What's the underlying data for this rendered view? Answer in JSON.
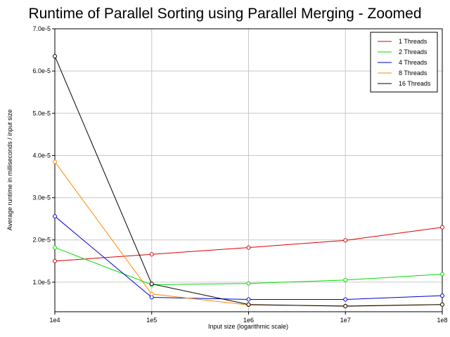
{
  "chart_data": {
    "type": "line",
    "title": "Runtime of Parallel Sorting using Parallel Merging - Zoomed",
    "xlabel": "Input size (logarithmic scale)",
    "ylabel": "Average runtime in milliseconds / input size",
    "x": [
      "1e4",
      "1e5",
      "1e6",
      "1e7",
      "1e8"
    ],
    "x_scale": "log",
    "ylim": [
      3e-06,
      7e-05
    ],
    "yticks": [
      1e-05,
      2e-05,
      3e-05,
      4e-05,
      5e-05,
      6e-05,
      7e-05
    ],
    "ytick_labels": [
      "1.0e-5",
      "2.0e-5",
      "3.0e-5",
      "4.0e-5",
      "5.0e-5",
      "6.0e-5",
      "7.0e-5"
    ],
    "grid": true,
    "legend_position": "top-right",
    "series": [
      {
        "name": "1 Threads",
        "color": "#dd0000",
        "values": [
          1.5e-05,
          1.66e-05,
          1.82e-05,
          1.99e-05,
          2.3e-05
        ]
      },
      {
        "name": "2 Threads",
        "color": "#00dd00",
        "values": [
          1.82e-05,
          9.4e-06,
          9.7e-06,
          1.05e-05,
          1.19e-05
        ]
      },
      {
        "name": "4 Threads",
        "color": "#0000cc",
        "values": [
          2.56e-05,
          6.4e-06,
          5.9e-06,
          5.9e-06,
          6.8e-06
        ]
      },
      {
        "name": "8 Threads",
        "color": "#ff8800",
        "values": [
          3.85e-05,
          7.2e-06,
          4.6e-06,
          4.4e-06,
          4.7e-06
        ]
      },
      {
        "name": "16 Threads",
        "color": "#000000",
        "values": [
          6.35e-05,
          9.6e-06,
          4.7e-06,
          4.3e-06,
          4.7e-06
        ]
      }
    ]
  }
}
